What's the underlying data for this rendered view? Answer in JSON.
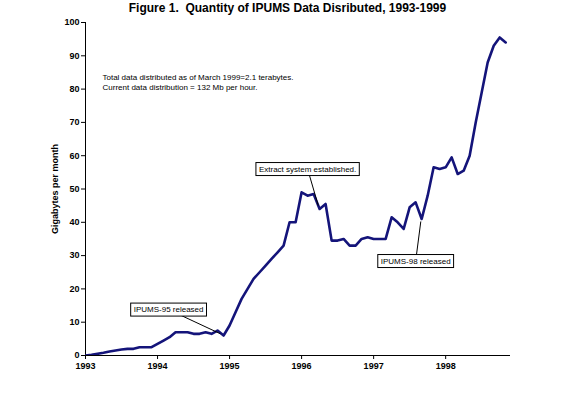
{
  "chart_data": {
    "type": "line",
    "title": "Figure 1.  Quantity of IPUMS Data Disributed, 1993-1999",
    "y_label": "Gigabytes per month",
    "x": [
      1993,
      1993.083,
      1993.167,
      1993.25,
      1993.333,
      1993.417,
      1993.5,
      1993.583,
      1993.667,
      1993.75,
      1993.833,
      1993.917,
      1994,
      1994.083,
      1994.167,
      1994.25,
      1994.333,
      1994.417,
      1994.5,
      1994.583,
      1994.667,
      1994.75,
      1994.833,
      1994.917,
      1995,
      1995.083,
      1995.167,
      1995.25,
      1995.333,
      1995.417,
      1995.5,
      1995.583,
      1995.667,
      1995.75,
      1995.833,
      1995.917,
      1996,
      1996.083,
      1996.167,
      1996.25,
      1996.333,
      1996.417,
      1996.5,
      1996.583,
      1996.667,
      1996.75,
      1996.833,
      1996.917,
      1997,
      1997.083,
      1997.167,
      1997.25,
      1997.333,
      1997.417,
      1997.5,
      1997.583,
      1997.667,
      1997.75,
      1997.833,
      1997.917,
      1998,
      1998.083,
      1998.167,
      1998.25,
      1998.333,
      1998.417,
      1998.5,
      1998.583,
      1998.667,
      1998.75,
      1998.833
    ],
    "values": [
      0,
      0.2,
      0.5,
      0.8,
      1.2,
      1.5,
      1.8,
      2,
      2,
      2.5,
      2.5,
      2.5,
      3.5,
      4.5,
      5.5,
      7,
      7,
      7,
      6.5,
      6.5,
      7,
      6.5,
      7.5,
      6,
      9,
      13,
      17,
      20,
      23,
      25,
      27,
      29,
      31,
      33,
      40,
      40,
      49,
      48,
      48.5,
      44,
      45.5,
      34.5,
      34.5,
      35,
      33,
      33,
      35,
      35.5,
      35,
      35,
      35,
      41.5,
      40,
      38,
      44.5,
      46,
      41,
      48,
      56.5,
      56,
      56.5,
      59.5,
      54.5,
      55.5,
      60,
      70,
      79,
      88,
      93,
      95.5,
      94
    ],
    "color": "#14147a",
    "xlim": [
      1993,
      1998.9
    ],
    "xticks": [
      1993,
      1994,
      1995,
      1996,
      1997,
      1998
    ],
    "ylim": [
      0,
      100
    ],
    "yticks": [
      0,
      10,
      20,
      30,
      40,
      50,
      60,
      70,
      80,
      90,
      100
    ],
    "grid": false,
    "notes": [
      "Total data distributed as of March 1999=2.1 terabytes.",
      "Current data distribution = 132 Mb per hour."
    ],
    "annotations": [
      {
        "text": "IPUMS-95 released",
        "x": 1994.917,
        "y": 6
      },
      {
        "text": "Extract system established.",
        "x": 1996.25,
        "y": 44
      },
      {
        "text": "IPUMS-98 released",
        "x": 1997.667,
        "y": 41
      }
    ]
  }
}
